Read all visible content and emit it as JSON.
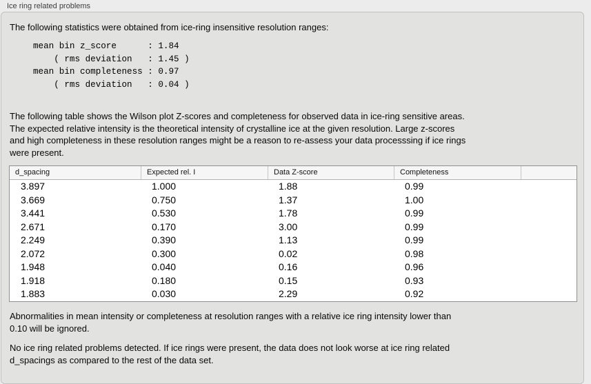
{
  "panel": {
    "title": "Ice ring related problems",
    "intro": "The following statistics were obtained from ice-ring insensitive resolution ranges:",
    "stats_block": "mean bin z_score      : 1.84\n    ( rms deviation   : 1.45 )\nmean bin completeness : 0.97\n    ( rms deviation   : 0.04 )",
    "stats": {
      "mean_bin_z_score": "1.84",
      "z_score_rms_deviation": "1.45",
      "mean_bin_completeness": "0.97",
      "completeness_rms_deviation": "0.04"
    },
    "description": "The following table shows the Wilson plot Z-scores and completeness for observed data in ice-ring sensitive areas.\nThe expected relative intensity is the theoretical intensity of crystalline ice at the given resolution. Large z-scores\nand high completeness in these resolution ranges might be a reason to re-assess your data processsing if ice rings\nwere present.",
    "note_ignore": "Abnormalities in mean intensity or completeness at resolution ranges with a relative ice ring intensity lower than\n0.10 will be ignored.",
    "conclusion": "No ice ring related problems detected. If ice rings were present, the data does not look worse at ice ring related\nd_spacings as compared to the rest of the data set."
  },
  "table": {
    "columns": [
      "d_spacing",
      "Expected rel. I",
      "Data Z-score",
      "Completeness",
      ""
    ],
    "rows": [
      [
        "3.897",
        "1.000",
        "1.88",
        "0.99"
      ],
      [
        "3.669",
        "0.750",
        "1.37",
        "1.00"
      ],
      [
        "3.441",
        "0.530",
        "1.78",
        "0.99"
      ],
      [
        "2.671",
        "0.170",
        "3.00",
        "0.99"
      ],
      [
        "2.249",
        "0.390",
        "1.13",
        "0.99"
      ],
      [
        "2.072",
        "0.300",
        "0.02",
        "0.98"
      ],
      [
        "1.948",
        "0.040",
        "0.16",
        "0.96"
      ],
      [
        "1.918",
        "0.180",
        "0.15",
        "0.93"
      ],
      [
        "1.883",
        "0.030",
        "2.29",
        "0.92"
      ]
    ]
  },
  "colors": {
    "outer_background": "#ececec",
    "panel_background": "#e2e2e0",
    "panel_border": "#c2c2c2",
    "table_border": "#8f8f8f",
    "table_header_background": "#f6f6f6",
    "table_body_background": "#ffffff",
    "text": "#000000",
    "title_text": "#3c3c3c"
  }
}
